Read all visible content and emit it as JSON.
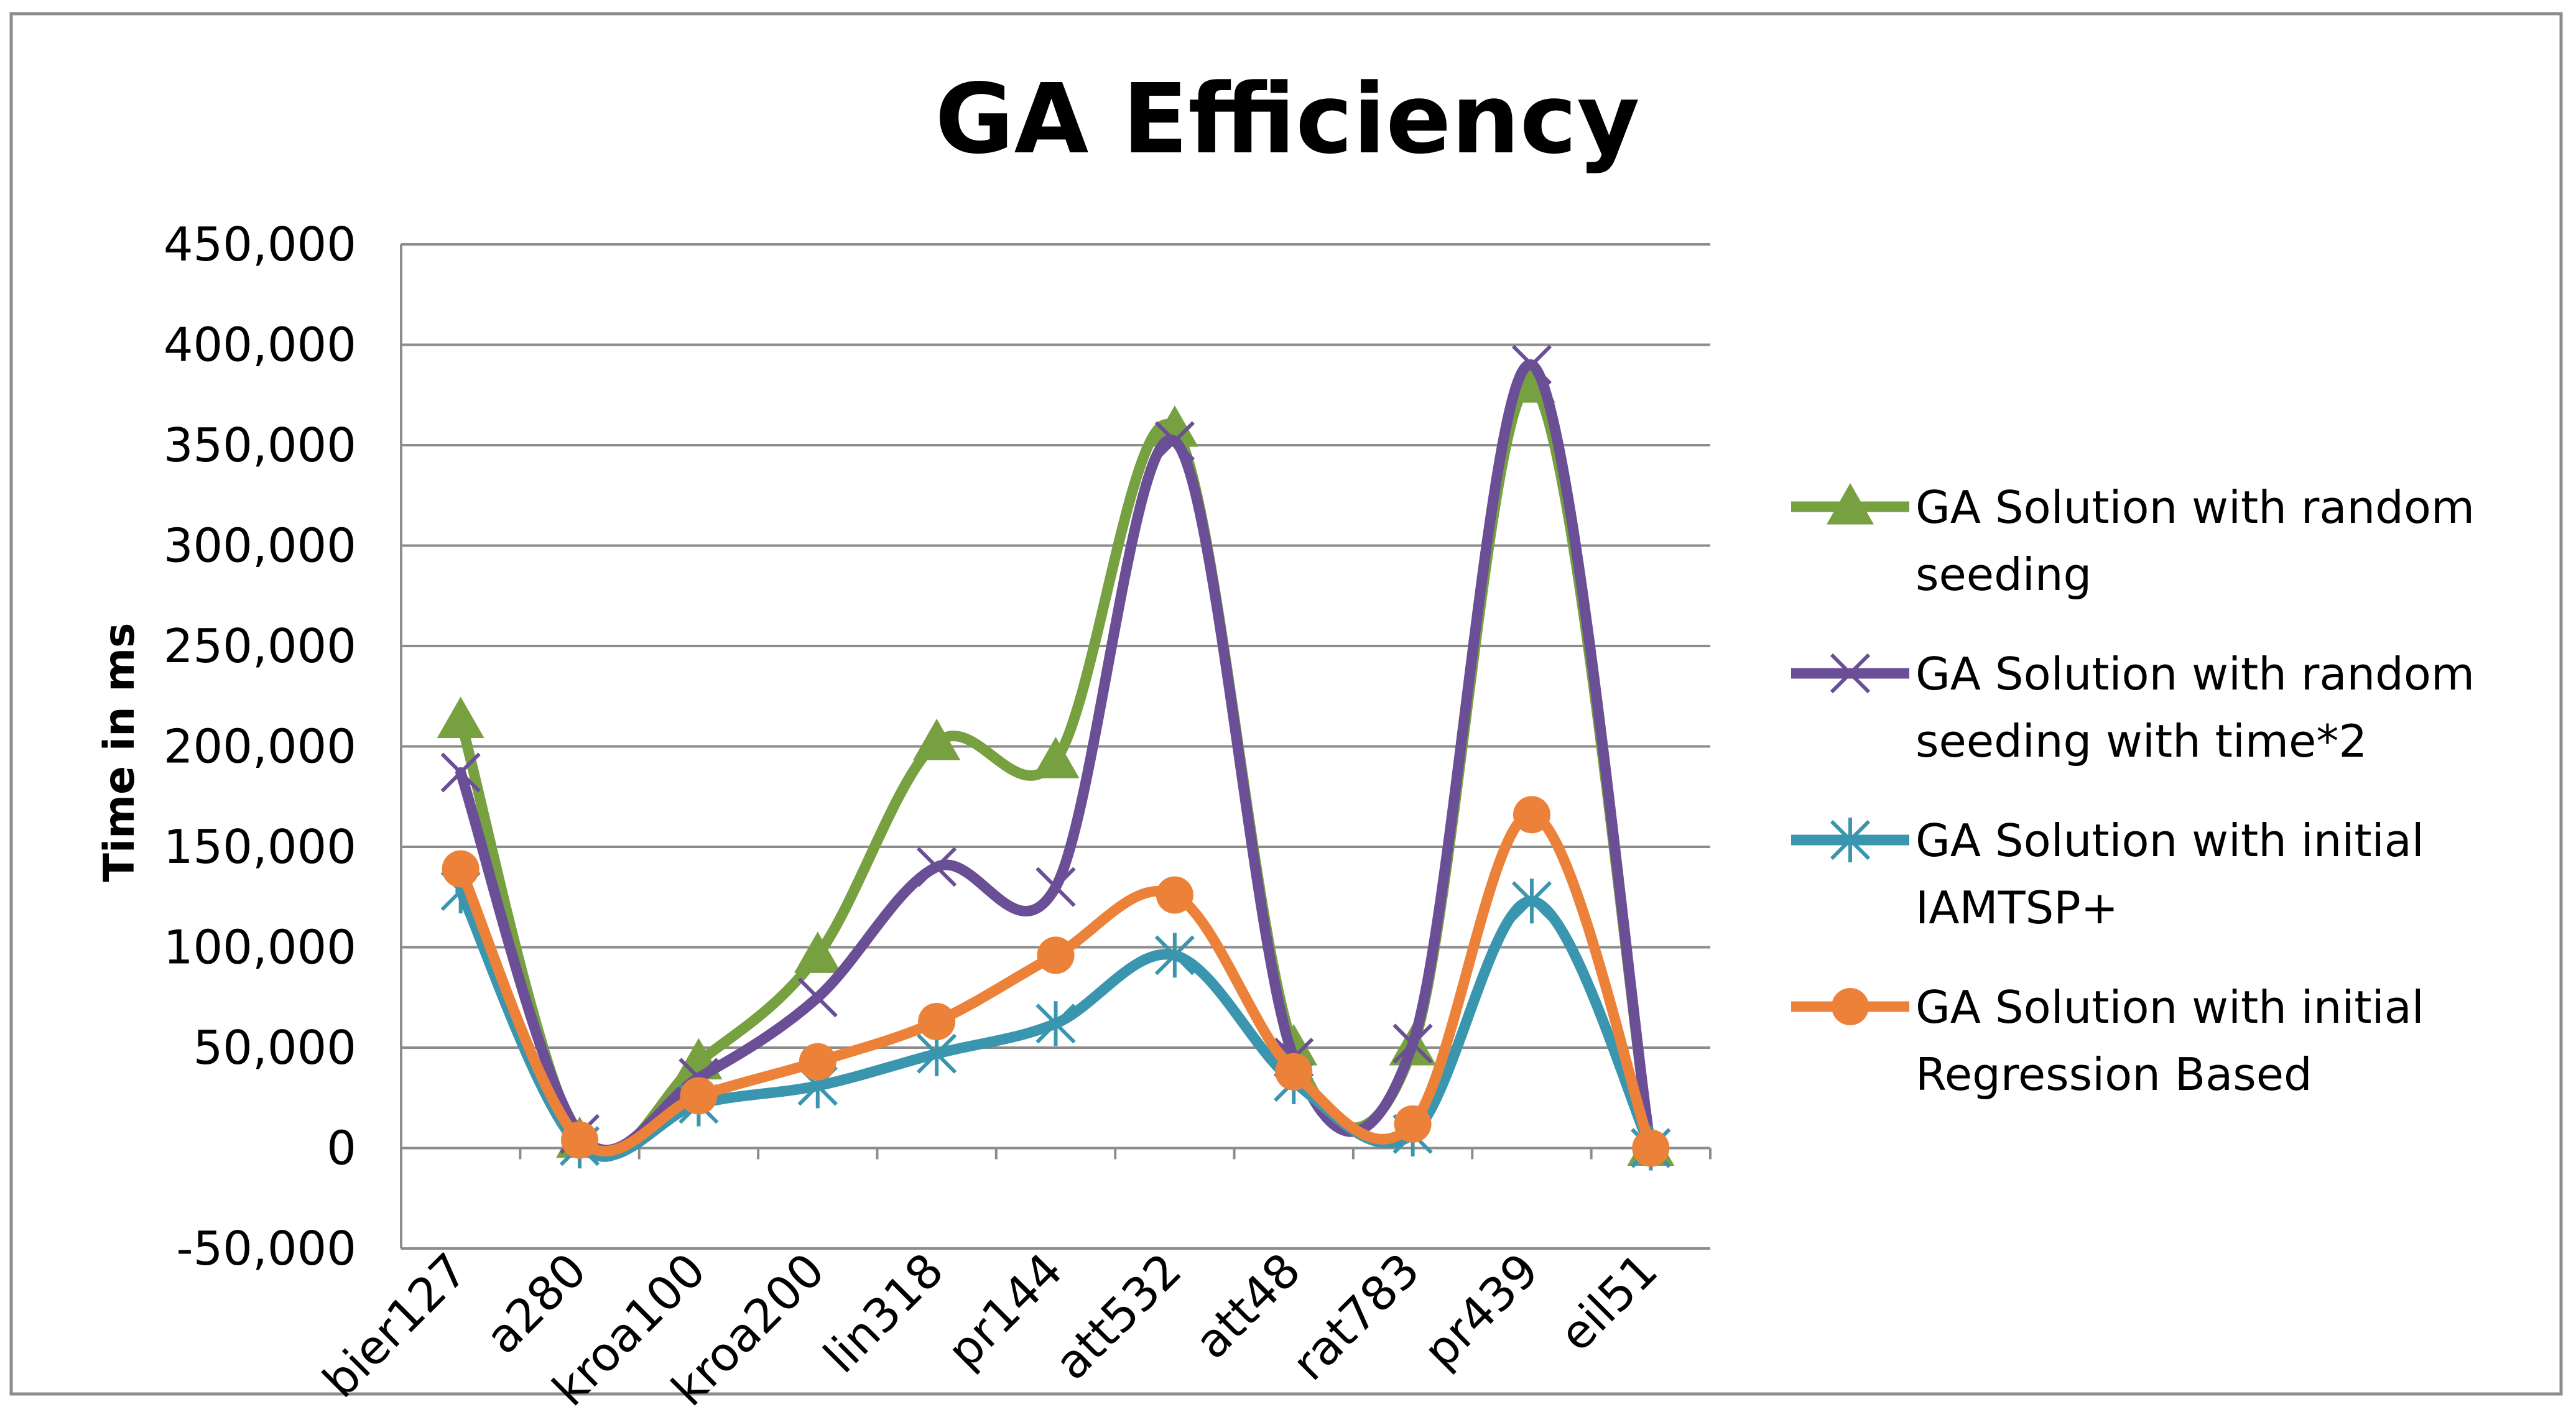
{
  "chart_data": {
    "type": "line",
    "title": "GA Efficiency",
    "xlabel": "",
    "ylabel": "Time  in ms",
    "categories": [
      "bier127",
      "a280",
      "kroa100",
      "kroa200",
      "lin318",
      "pr144",
      "att532",
      "att48",
      "rat783",
      "pr439",
      "eil51"
    ],
    "ylim": [
      -50000,
      450000
    ],
    "yticks": [
      -50000,
      0,
      50000,
      100000,
      150000,
      200000,
      250000,
      300000,
      350000,
      400000,
      450000
    ],
    "ytick_labels": [
      "-50,000",
      "0",
      "50,000",
      "100,000",
      "150,000",
      "200,000",
      "250,000",
      "300,000",
      "350,000",
      "400,000",
      "450,000"
    ],
    "grid": true,
    "legend_position": "right",
    "series": [
      {
        "name": "GA   Solution with random seeding",
        "legend_lines": [
          "GA   Solution with random",
          "seeding"
        ],
        "color": "#77A040",
        "marker": "triangle",
        "values": [
          213000,
          4000,
          43000,
          96000,
          202000,
          193000,
          358000,
          50000,
          50000,
          380000,
          0
        ]
      },
      {
        "name": "GA   Solution with random seeding with time*2",
        "legend_lines": [
          "GA   Solution with random",
          "seeding with time*2"
        ],
        "color": "#6B4F96",
        "marker": "x",
        "values": [
          187000,
          7000,
          35000,
          75000,
          140000,
          130000,
          352000,
          45000,
          52000,
          390000,
          0
        ]
      },
      {
        "name": " GA Solution with  initial IAMTSP+",
        "legend_lines": [
          " GA Solution with  initial",
          "IAMTSP+"
        ],
        "color": "#3A96AE",
        "marker": "asterisk",
        "values": [
          128000,
          1000,
          22000,
          31000,
          47000,
          62000,
          96000,
          33000,
          7000,
          123000,
          0
        ]
      },
      {
        "name": "GA Solution with  initial Regression Based",
        "legend_lines": [
          "GA Solution with  initial",
          "Regression Based"
        ],
        "color": "#EC823A",
        "marker": "circle",
        "values": [
          139000,
          4000,
          26000,
          43000,
          63000,
          96000,
          126000,
          38000,
          12000,
          166000,
          0
        ]
      }
    ]
  }
}
